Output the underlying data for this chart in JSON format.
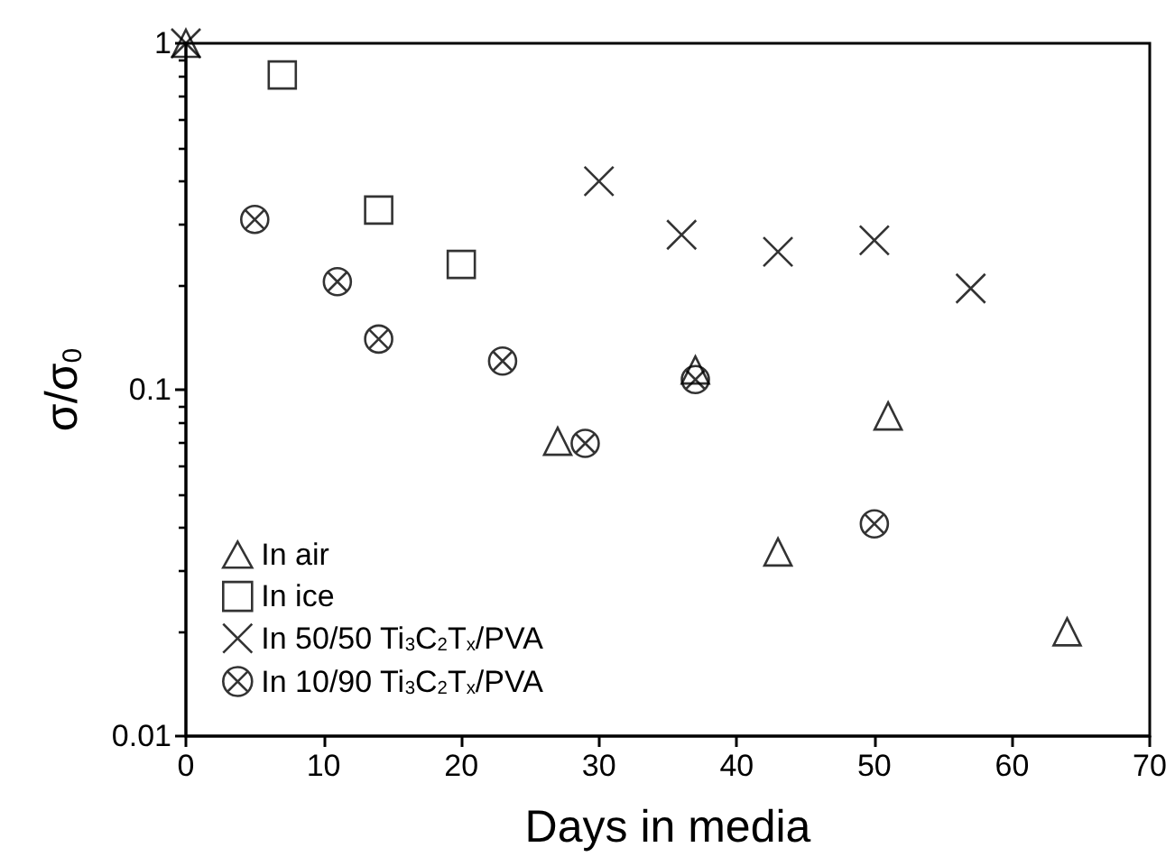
{
  "chart_data": {
    "type": "scatter",
    "xlabel": "Days in media",
    "ylabel": "σ/σ$_{0}$",
    "xlim": [
      0,
      70
    ],
    "xticks": [
      0,
      10,
      20,
      30,
      40,
      50,
      60,
      70
    ],
    "ylim": [
      0.01,
      1
    ],
    "yticks": [
      0.01,
      0.1,
      1
    ],
    "log": "y",
    "grid": false,
    "legend": "bottom left",
    "series": [
      {
        "name": "In air",
        "color": "#000000",
        "marker": "triangle",
        "x": [
          0,
          27,
          37,
          43,
          51,
          64
        ],
        "values": [
          1,
          0.071,
          0.114,
          0.034,
          0.084,
          0.02
        ]
      },
      {
        "name": "In ice",
        "color": "#000000",
        "marker": "square",
        "x": [
          7,
          14,
          20
        ],
        "values": [
          0.81,
          0.33,
          0.23
        ]
      },
      {
        "name": "In 50/50 Ti$_{3}$C$_{2}$T$_{x}$/PVA",
        "color": "#000000",
        "marker": "cross",
        "x": [
          0,
          30,
          36,
          43,
          50,
          57
        ],
        "values": [
          1,
          0.4,
          0.28,
          0.25,
          0.27,
          0.196
        ]
      },
      {
        "name": "In 10/90 Ti$_{3}$C$_{2}$T$_{x}$/PVA",
        "color": "#000000",
        "x": [
          5,
          11,
          14,
          23,
          29,
          37,
          50
        ],
        "values": [
          0.31,
          0.205,
          0.14,
          0.121,
          0.07,
          0.107,
          0.041
        ]
      }
    ]
  }
}
